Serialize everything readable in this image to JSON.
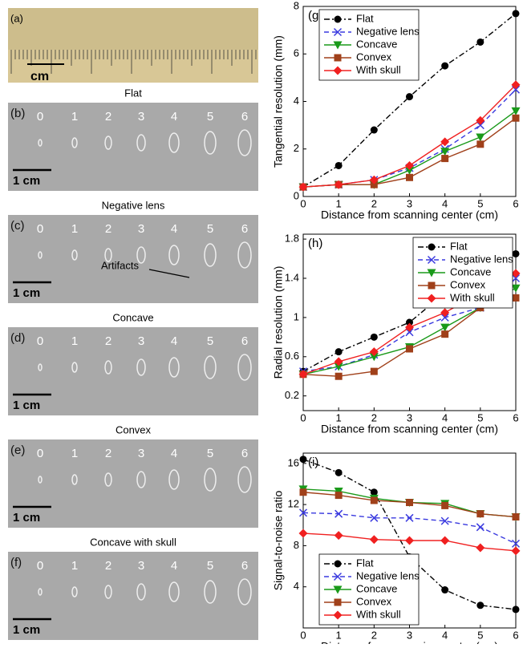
{
  "panels": [
    {
      "label": "(a)",
      "scale": "cm"
    },
    {
      "label": "(b)",
      "title": "Flat",
      "markers": [
        "0",
        "1",
        "2",
        "3",
        "4",
        "5",
        "6"
      ],
      "scale": "1 cm"
    },
    {
      "label": "(c)",
      "title": "Negative lens",
      "markers": [
        "0",
        "1",
        "2",
        "3",
        "4",
        "5",
        "6"
      ],
      "scale": "1 cm",
      "annotation": "Artifacts"
    },
    {
      "label": "(d)",
      "title": "Concave",
      "markers": [
        "0",
        "1",
        "2",
        "3",
        "4",
        "5",
        "6"
      ],
      "scale": "1 cm"
    },
    {
      "label": "(e)",
      "title": "Convex",
      "markers": [
        "0",
        "1",
        "2",
        "3",
        "4",
        "5",
        "6"
      ],
      "scale": "1 cm"
    },
    {
      "label": "(f)",
      "title": "Concave with skull",
      "markers": [
        "0",
        "1",
        "2",
        "3",
        "4",
        "5",
        "6"
      ],
      "scale": "1 cm"
    }
  ],
  "chart_data": [
    {
      "type": "line",
      "label": "(g)",
      "x_label": "Distance from scanning center (cm)",
      "y_label": "Tangential resolution (mm)",
      "x": [
        0,
        1,
        2,
        3,
        4,
        5,
        6
      ],
      "xlim": [
        0,
        6
      ],
      "xticks": [
        0,
        1,
        2,
        3,
        4,
        5,
        6
      ],
      "ylim": [
        0,
        8
      ],
      "yticks": [
        0,
        2,
        4,
        6,
        8
      ],
      "legend": "upper left",
      "series": [
        {
          "name": "Flat",
          "color": "#000000",
          "marker": "circle",
          "dash": "dashdot",
          "values": [
            0.4,
            1.3,
            2.8,
            4.2,
            5.5,
            6.5,
            7.7
          ]
        },
        {
          "name": "Negative lens",
          "color": "#3a3adf",
          "marker": "x",
          "dash": "dashed",
          "values": [
            0.4,
            0.5,
            0.7,
            1.2,
            2.0,
            3.0,
            4.5
          ]
        },
        {
          "name": "Concave",
          "color": "#1a9a1a",
          "marker": "triangle",
          "dash": "solid",
          "values": [
            0.4,
            0.5,
            0.5,
            1.1,
            1.9,
            2.5,
            3.6
          ]
        },
        {
          "name": "Convex",
          "color": "#a0401a",
          "marker": "square",
          "dash": "solid",
          "values": [
            0.4,
            0.5,
            0.5,
            0.8,
            1.6,
            2.2,
            3.3
          ]
        },
        {
          "name": "With skull",
          "color": "#f02020",
          "marker": "diamond",
          "dash": "solid",
          "values": [
            0.4,
            0.5,
            0.7,
            1.3,
            2.3,
            3.2,
            4.7
          ]
        }
      ]
    },
    {
      "type": "line",
      "label": "(h)",
      "x_label": "Distance from scanning center (cm)",
      "y_label": "Radial resolution (mm)",
      "x": [
        0,
        1,
        2,
        3,
        4,
        5,
        6
      ],
      "xlim": [
        0,
        6
      ],
      "xticks": [
        0,
        1,
        2,
        3,
        4,
        5,
        6
      ],
      "ylim": [
        0.05,
        1.85
      ],
      "yticks": [
        0.2,
        0.6,
        1,
        1.4,
        1.8
      ],
      "legend": "upper right",
      "series": [
        {
          "name": "Flat",
          "color": "#000000",
          "marker": "circle",
          "dash": "dashdot",
          "values": [
            0.45,
            0.65,
            0.8,
            0.95,
            1.25,
            1.6,
            1.65
          ]
        },
        {
          "name": "Negative lens",
          "color": "#3a3adf",
          "marker": "x",
          "dash": "dashed",
          "values": [
            0.45,
            0.5,
            0.62,
            0.85,
            1.0,
            1.1,
            1.4
          ]
        },
        {
          "name": "Concave",
          "color": "#1a9a1a",
          "marker": "triangle",
          "dash": "solid",
          "values": [
            0.42,
            0.5,
            0.6,
            0.7,
            0.9,
            1.1,
            1.3
          ]
        },
        {
          "name": "Convex",
          "color": "#a0401a",
          "marker": "square",
          "dash": "solid",
          "values": [
            0.42,
            0.4,
            0.45,
            0.68,
            0.83,
            1.1,
            1.2
          ]
        },
        {
          "name": "With skull",
          "color": "#f02020",
          "marker": "diamond",
          "dash": "solid",
          "values": [
            0.42,
            0.55,
            0.65,
            0.9,
            1.05,
            1.25,
            1.45
          ]
        }
      ]
    },
    {
      "type": "line",
      "label": "(i)",
      "x_label": "Distance from scanning center (cm)",
      "y_label": "Signal-to-noise ratio",
      "x": [
        0,
        1,
        2,
        3,
        4,
        5,
        6
      ],
      "xlim": [
        0,
        6
      ],
      "xticks": [
        0,
        1,
        2,
        3,
        4,
        5,
        6
      ],
      "ylim": [
        0,
        17
      ],
      "yticks": [
        4,
        8,
        12,
        16
      ],
      "legend": "lower left",
      "series": [
        {
          "name": "Flat",
          "color": "#000000",
          "marker": "circle",
          "dash": "dashdot",
          "values": [
            16.4,
            15.1,
            13.2,
            6.9,
            3.7,
            2.2,
            1.8
          ]
        },
        {
          "name": "Negative lens",
          "color": "#3a3adf",
          "marker": "x",
          "dash": "dashed",
          "values": [
            11.2,
            11.1,
            10.7,
            10.7,
            10.4,
            9.8,
            8.2
          ]
        },
        {
          "name": "Concave",
          "color": "#1a9a1a",
          "marker": "triangle",
          "dash": "solid",
          "values": [
            13.5,
            13.3,
            12.6,
            12.2,
            12.1,
            11.1,
            10.8
          ]
        },
        {
          "name": "Convex",
          "color": "#a0401a",
          "marker": "square",
          "dash": "solid",
          "values": [
            13.2,
            12.9,
            12.4,
            12.2,
            11.9,
            11.1,
            10.8
          ]
        },
        {
          "name": "With skull",
          "color": "#f02020",
          "marker": "diamond",
          "dash": "solid",
          "values": [
            9.2,
            9.0,
            8.6,
            8.5,
            8.5,
            7.8,
            7.5
          ]
        }
      ]
    }
  ]
}
